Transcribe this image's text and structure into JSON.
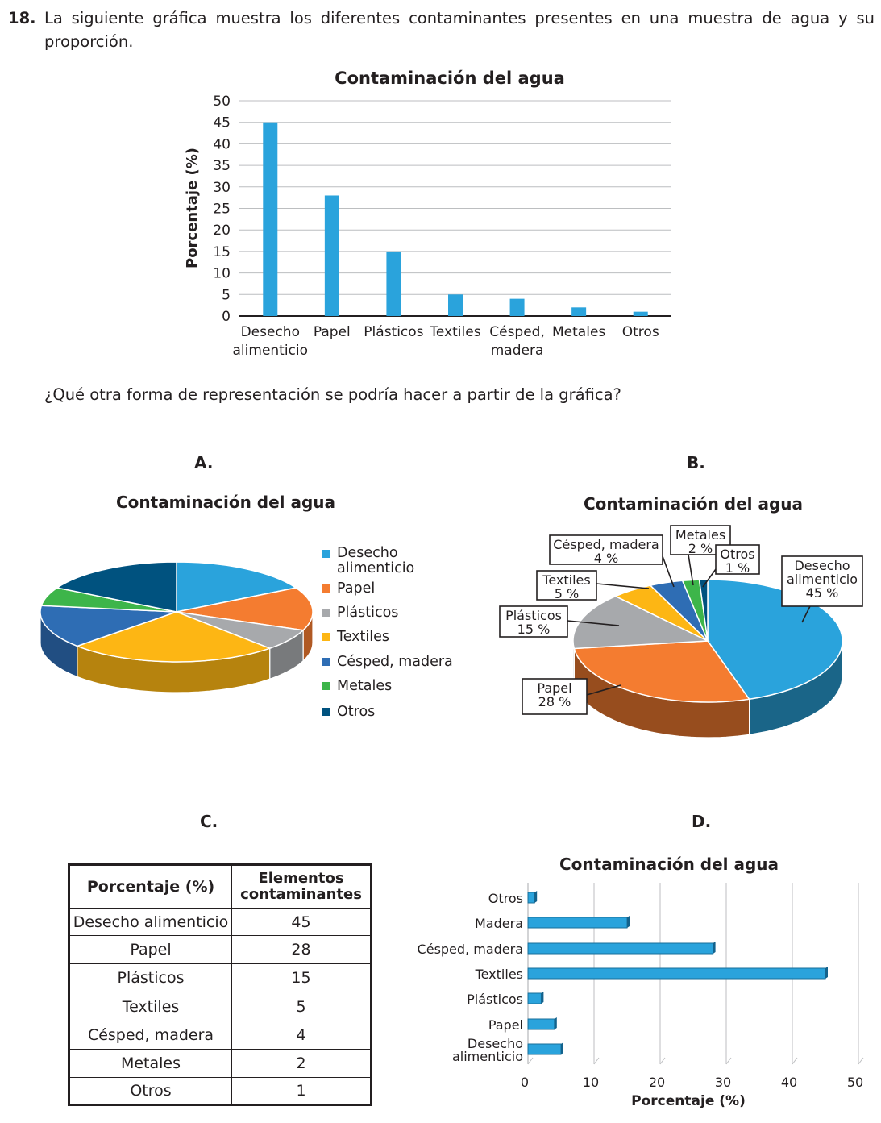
{
  "question": {
    "number": "18.",
    "text": "La siguiente gráfica muestra los diferentes contaminantes presentes en una muestra de agua y su proporción.",
    "prompt": "¿Qué otra forma de representación se podría hacer a partir de la gráfica?"
  },
  "colors": {
    "bar": "#2aa3dc",
    "food": "#2aa3dc",
    "paper": "#f47c30",
    "plastics": "#a7a9ac",
    "textiles": "#fdb614",
    "grass": "#2e6db4",
    "metals": "#3db54a",
    "others": "#00527f"
  },
  "options": {
    "a": {
      "label": "A.",
      "title": "Contaminación del agua",
      "legend": [
        "Desecho alimenticio",
        "Papel",
        "Plásticos",
        "Textiles",
        "Césped, madera",
        "Metales",
        "Otros"
      ]
    },
    "b": {
      "label": "B.",
      "title": "Contaminación del agua",
      "callouts": {
        "food": [
          "Desecho",
          "alimenticio",
          "45 %"
        ],
        "paper": [
          "Papel",
          "28 %"
        ],
        "plastics": [
          "Plásticos",
          "15 %"
        ],
        "textiles": [
          "Textiles",
          "5 %"
        ],
        "grass": [
          "Césped, madera",
          "4 %"
        ],
        "metals": [
          "Metales",
          "2 %"
        ],
        "others": [
          "Otros",
          "1 %"
        ]
      }
    },
    "c": {
      "label": "C.",
      "header": [
        "Porcentaje (%)",
        "Elementos",
        "contaminantes"
      ],
      "rows": [
        [
          "Desecho alimenticio",
          "45"
        ],
        [
          "Papel",
          "28"
        ],
        [
          "Plásticos",
          "15"
        ],
        [
          "Textiles",
          "5"
        ],
        [
          "Césped, madera",
          "4"
        ],
        [
          "Metales",
          "2"
        ],
        [
          "Otros",
          "1"
        ]
      ]
    },
    "d": {
      "label": "D.",
      "title": "Contaminación del agua",
      "xlabel": "Porcentaje (%)",
      "xticks": [
        "0",
        "10",
        "20",
        "30",
        "40",
        "50"
      ],
      "categories_top_to_bottom": [
        "Otros",
        "Madera",
        "Césped, madera",
        "Textiles",
        "Plásticos",
        "Papel",
        "Desecho alimenticio"
      ],
      "values_top_to_bottom": [
        1,
        15,
        28,
        45,
        2,
        4,
        5
      ]
    }
  },
  "chart_data": [
    {
      "type": "bar",
      "title": "Contaminación del agua",
      "xlabel": "",
      "ylabel": "Porcentaje (%)",
      "categories": [
        "Desecho alimenticio",
        "Papel",
        "Plásticos",
        "Textiles",
        "Césped, madera",
        "Metales",
        "Otros"
      ],
      "values": [
        45,
        28,
        15,
        5,
        4,
        2,
        1
      ],
      "ylim": [
        0,
        50
      ],
      "yticks": [
        "0",
        "5",
        "10",
        "15",
        "20",
        "25",
        "30",
        "35",
        "40",
        "45",
        "50"
      ],
      "grid": true
    },
    {
      "type": "pie",
      "title": "Contaminación del agua",
      "categories": [
        "Desecho alimenticio",
        "Papel",
        "Plásticos",
        "Textiles",
        "Césped, madera",
        "Metales",
        "Otros"
      ],
      "values": [
        17,
        14,
        7,
        25,
        14,
        6,
        17
      ],
      "legend": "right"
    },
    {
      "type": "pie",
      "title": "Contaminación del agua",
      "categories": [
        "Desecho alimenticio",
        "Papel",
        "Plásticos",
        "Textiles",
        "Césped, madera",
        "Metales",
        "Otros"
      ],
      "values": [
        45,
        28,
        15,
        5,
        4,
        2,
        1
      ]
    },
    {
      "type": "table",
      "columns": [
        "Porcentaje (%)",
        "Elementos contaminantes"
      ],
      "rows": [
        [
          "Desecho alimenticio",
          45
        ],
        [
          "Papel",
          28
        ],
        [
          "Plásticos",
          15
        ],
        [
          "Textiles",
          5
        ],
        [
          "Césped, madera",
          4
        ],
        [
          "Metales",
          2
        ],
        [
          "Otros",
          1
        ]
      ]
    },
    {
      "type": "bar",
      "orientation": "horizontal",
      "title": "Contaminación del agua",
      "xlabel": "Porcentaje (%)",
      "categories": [
        "Desecho alimenticio",
        "Papel",
        "Plásticos",
        "Textiles",
        "Césped, madera",
        "Madera",
        "Otros"
      ],
      "values": [
        5,
        4,
        2,
        45,
        28,
        15,
        1
      ],
      "xlim": [
        0,
        50
      ],
      "grid": true
    }
  ]
}
